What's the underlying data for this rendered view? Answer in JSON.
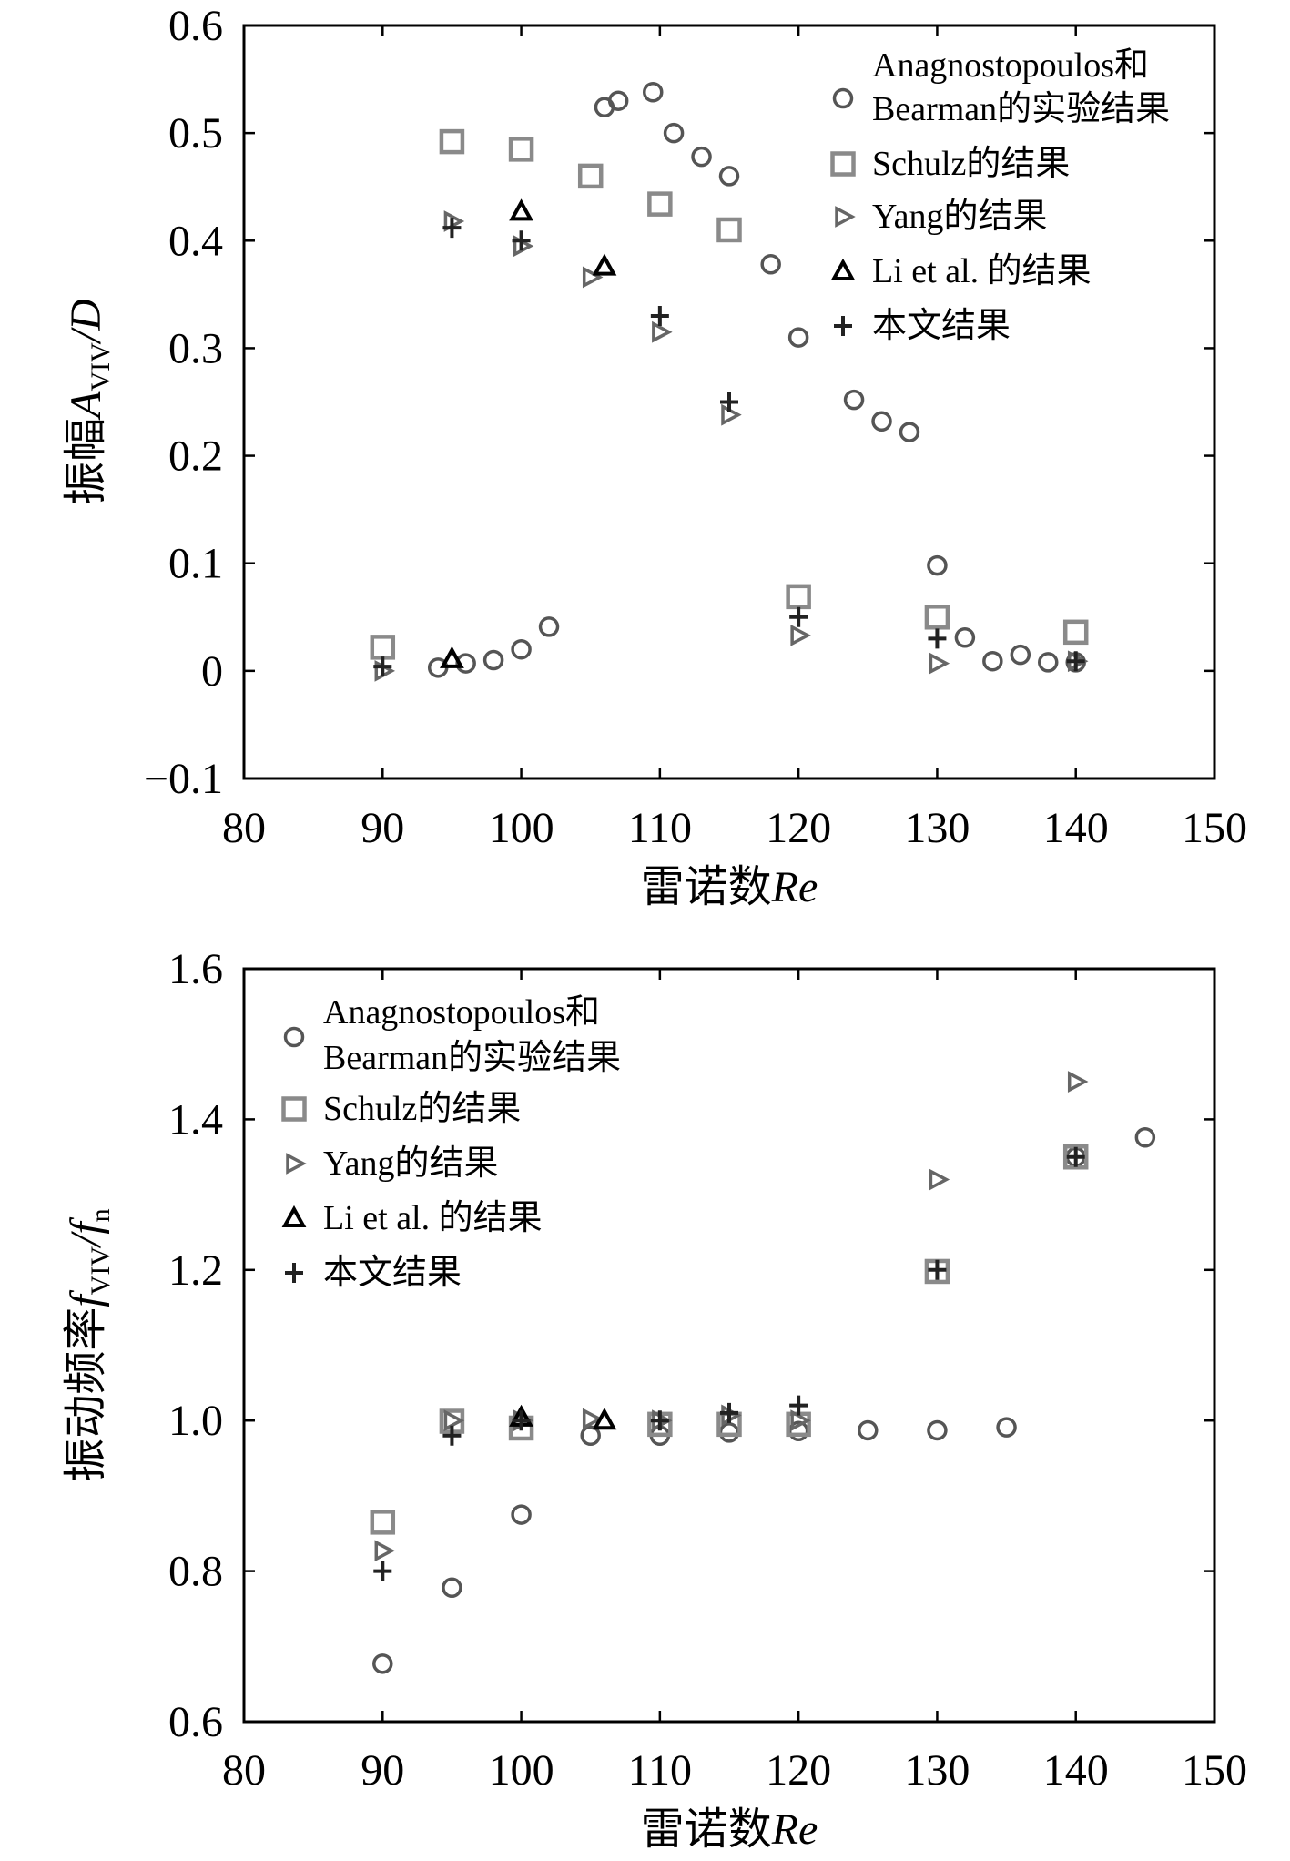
{
  "legend_labels": {
    "anag": [
      "Anagnostopoulos和",
      "Bearman的实验结果"
    ],
    "schulz": "Schulz的结果",
    "yang": "Yang的结果",
    "li": "Li et al. 的结果",
    "present": "本文结果"
  },
  "chart_data": [
    {
      "type": "scatter",
      "title": "",
      "xlabel": {
        "prefix": "雷诺数",
        "var": "Re"
      },
      "ylabel": {
        "prefix": "振幅",
        "main": "A",
        "sub": "VIV",
        "suffix": "/D"
      },
      "xlim": [
        80,
        150
      ],
      "ylim": [
        -0.1,
        0.6
      ],
      "xticks": [
        80,
        90,
        100,
        110,
        120,
        130,
        140,
        150
      ],
      "yticks": [
        -0.1,
        0,
        0.1,
        0.2,
        0.3,
        0.4,
        0.5,
        0.6
      ],
      "ytick_labels": [
        "−0.1",
        "0",
        "0.1",
        "0.2",
        "0.3",
        "0.4",
        "0.5",
        "0.6"
      ],
      "legend_position": "top-right",
      "series": [
        {
          "key": "anag",
          "marker": "circle",
          "points": [
            [
              94,
              0.003
            ],
            [
              96,
              0.007
            ],
            [
              98,
              0.01
            ],
            [
              100,
              0.02
            ],
            [
              102,
              0.041
            ],
            [
              106,
              0.524
            ],
            [
              107,
              0.53
            ],
            [
              109.5,
              0.538
            ],
            [
              111,
              0.5
            ],
            [
              113,
              0.478
            ],
            [
              115,
              0.46
            ],
            [
              118,
              0.378
            ],
            [
              120,
              0.31
            ],
            [
              124,
              0.252
            ],
            [
              126,
              0.232
            ],
            [
              128,
              0.222
            ],
            [
              130,
              0.098
            ],
            [
              132,
              0.031
            ],
            [
              134,
              0.009
            ],
            [
              136,
              0.015
            ],
            [
              138,
              0.008
            ],
            [
              140,
              0.008
            ]
          ]
        },
        {
          "key": "schulz",
          "marker": "square",
          "points": [
            [
              90,
              0.022
            ],
            [
              95,
              0.492
            ],
            [
              100,
              0.485
            ],
            [
              105,
              0.46
            ],
            [
              110,
              0.434
            ],
            [
              115,
              0.41
            ],
            [
              120,
              0.069
            ],
            [
              130,
              0.05
            ],
            [
              140,
              0.036
            ]
          ]
        },
        {
          "key": "yang",
          "marker": "triangle-right",
          "points": [
            [
              90,
              0.0
            ],
            [
              95,
              0.418
            ],
            [
              100,
              0.395
            ],
            [
              105,
              0.366
            ],
            [
              110,
              0.315
            ],
            [
              115,
              0.238
            ],
            [
              120,
              0.033
            ],
            [
              130,
              0.007
            ],
            [
              140,
              0.009
            ]
          ]
        },
        {
          "key": "li",
          "marker": "triangle-up",
          "points": [
            [
              95,
              0.011
            ],
            [
              100,
              0.427
            ],
            [
              106,
              0.376
            ]
          ]
        },
        {
          "key": "present",
          "marker": "plus",
          "points": [
            [
              90,
              0.004
            ],
            [
              95,
              0.412
            ],
            [
              100,
              0.4
            ],
            [
              110,
              0.33
            ],
            [
              115,
              0.25
            ],
            [
              120,
              0.05
            ],
            [
              130,
              0.03
            ],
            [
              140,
              0.009
            ]
          ]
        }
      ]
    },
    {
      "type": "scatter",
      "title": "",
      "xlabel": {
        "prefix": "雷诺数",
        "var": "Re"
      },
      "ylabel": {
        "prefix": "振动频率",
        "main": "f",
        "sub": "VIV",
        "suffix": "/f",
        "suffix_sub": "n"
      },
      "xlim": [
        80,
        150
      ],
      "ylim": [
        0.6,
        1.6
      ],
      "xticks": [
        80,
        90,
        100,
        110,
        120,
        130,
        140,
        150
      ],
      "yticks": [
        0.6,
        0.8,
        1.0,
        1.2,
        1.4,
        1.6
      ],
      "ytick_labels": [
        "0.6",
        "0.8",
        "1.0",
        "1.2",
        "1.4",
        "1.6"
      ],
      "legend_position": "top-left",
      "series": [
        {
          "key": "anag",
          "marker": "circle",
          "points": [
            [
              90,
              0.677
            ],
            [
              95,
              0.778
            ],
            [
              100,
              0.875
            ],
            [
              105,
              0.98
            ],
            [
              110,
              0.98
            ],
            [
              115,
              0.984
            ],
            [
              120,
              0.986
            ],
            [
              125,
              0.987
            ],
            [
              130,
              0.987
            ],
            [
              135,
              0.991
            ],
            [
              140,
              1.35
            ],
            [
              145,
              1.376
            ]
          ]
        },
        {
          "key": "schulz",
          "marker": "square",
          "points": [
            [
              90,
              0.865
            ],
            [
              95,
              0.999
            ],
            [
              100,
              0.99
            ],
            [
              110,
              0.995
            ],
            [
              115,
              0.995
            ],
            [
              120,
              0.995
            ],
            [
              130,
              1.198
            ],
            [
              140,
              1.35
            ]
          ]
        },
        {
          "key": "yang",
          "marker": "triangle-right",
          "points": [
            [
              90,
              0.827
            ],
            [
              95,
              1.0
            ],
            [
              100,
              1.0
            ],
            [
              105,
              1.002
            ],
            [
              110,
              1.0
            ],
            [
              115,
              1.007
            ],
            [
              120,
              1.0
            ],
            [
              130,
              1.32
            ],
            [
              140,
              1.45
            ]
          ]
        },
        {
          "key": "li",
          "marker": "triangle-up",
          "points": [
            [
              100,
              1.004
            ],
            [
              106,
              1.0
            ]
          ]
        },
        {
          "key": "present",
          "marker": "plus",
          "points": [
            [
              90,
              0.8
            ],
            [
              95,
              0.98
            ],
            [
              100,
              1.0
            ],
            [
              110,
              1.0
            ],
            [
              115,
              1.01
            ],
            [
              120,
              1.02
            ],
            [
              130,
              1.2
            ],
            [
              140,
              1.35
            ]
          ]
        }
      ]
    }
  ]
}
